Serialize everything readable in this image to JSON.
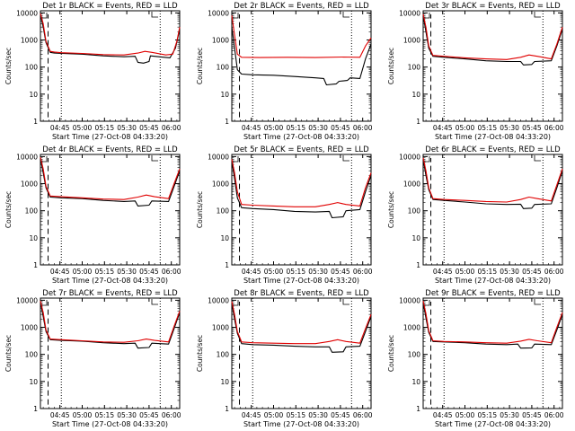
{
  "page": {
    "colors": {
      "background": "#ffffff",
      "axes": "#000000",
      "events": "#000000",
      "lld": "#e00000"
    }
  },
  "chart_data": [
    {
      "type": "line",
      "title": "Det 1r BLACK = Events, RED = LLD",
      "xlabel": "Start Time (27-Oct-08 04:33:20)",
      "ylabel": "Counts/sec",
      "yscale": "log",
      "ylim": [
        1,
        12000
      ],
      "xlim": [
        0,
        1
      ],
      "xtick_pos": [
        0.14,
        0.3,
        0.46,
        0.62,
        0.78,
        0.94
      ],
      "xticks": [
        "04:45",
        "05:00",
        "05:15",
        "05:30",
        "05:45",
        "06:00"
      ],
      "yticks": [
        1,
        10,
        100,
        1000,
        10000
      ],
      "yticklabels": [
        "1",
        "10",
        "100",
        "1000",
        "10000"
      ],
      "vlines_dashed": [
        0.055
      ],
      "vlines_dotted": [
        0.15,
        0.86
      ],
      "series": [
        {
          "name": "Events",
          "color": "#000000",
          "x": [
            0,
            0.02,
            0.04,
            0.07,
            0.1,
            0.15,
            0.3,
            0.45,
            0.6,
            0.68,
            0.7,
            0.74,
            0.78,
            0.79,
            0.85,
            0.93,
            0.97,
            1
          ],
          "y": [
            9000,
            3000,
            800,
            350,
            330,
            320,
            300,
            260,
            240,
            250,
            150,
            140,
            160,
            260,
            240,
            220,
            500,
            2500
          ]
        },
        {
          "name": "LLD",
          "color": "#e00000",
          "x": [
            0,
            0.02,
            0.04,
            0.07,
            0.1,
            0.15,
            0.3,
            0.45,
            0.6,
            0.7,
            0.75,
            0.8,
            0.9,
            0.95,
            0.98,
            1
          ],
          "y": [
            9500,
            4000,
            900,
            380,
            360,
            340,
            320,
            290,
            280,
            330,
            380,
            350,
            280,
            300,
            900,
            3000
          ]
        }
      ]
    },
    {
      "type": "line",
      "title": "Det 2r BLACK = Events, RED = LLD",
      "xlabel": "Start Time (27-Oct-08 04:33:20)",
      "ylabel": "Counts/sec",
      "yscale": "log",
      "ylim": [
        1,
        12000
      ],
      "xlim": [
        0,
        1
      ],
      "xtick_pos": [
        0.14,
        0.3,
        0.46,
        0.62,
        0.78,
        0.94
      ],
      "xticks": [
        "04:45",
        "05:00",
        "05:15",
        "05:30",
        "05:45",
        "06:00"
      ],
      "yticks": [
        1,
        10,
        100,
        1000,
        10000
      ],
      "yticklabels": [
        "1",
        "10",
        "100",
        "1000",
        "10000"
      ],
      "vlines_dashed": [
        0.055
      ],
      "vlines_dotted": [
        0.15,
        0.86
      ],
      "series": [
        {
          "name": "Events",
          "color": "#000000",
          "x": [
            0,
            0.02,
            0.04,
            0.07,
            0.15,
            0.3,
            0.45,
            0.6,
            0.66,
            0.68,
            0.75,
            0.77,
            0.83,
            0.85,
            0.92,
            0.96,
            1
          ],
          "y": [
            3000,
            500,
            80,
            55,
            52,
            50,
            45,
            40,
            38,
            22,
            24,
            30,
            32,
            40,
            38,
            200,
            700
          ]
        },
        {
          "name": "LLD",
          "color": "#e00000",
          "x": [
            0,
            0.02,
            0.04,
            0.07,
            0.2,
            0.4,
            0.6,
            0.8,
            0.92,
            0.96,
            1
          ],
          "y": [
            8000,
            1500,
            300,
            230,
            225,
            230,
            225,
            235,
            230,
            600,
            1200
          ]
        }
      ]
    },
    {
      "type": "line",
      "title": "Det 3r BLACK = Events, RED = LLD",
      "xlabel": "Start Time (27-Oct-08 04:33:20)",
      "ylabel": "Counts/sec",
      "yscale": "log",
      "ylim": [
        1,
        12000
      ],
      "xlim": [
        0,
        1
      ],
      "xtick_pos": [
        0.14,
        0.3,
        0.46,
        0.62,
        0.78,
        0.94
      ],
      "xticks": [
        "04:45",
        "05:00",
        "05:15",
        "05:30",
        "05:45",
        "06:00"
      ],
      "yticks": [
        1,
        10,
        100,
        1000,
        10000
      ],
      "yticklabels": [
        "1",
        "10",
        "100",
        "1000",
        "10000"
      ],
      "vlines_dashed": [
        0.055
      ],
      "vlines_dotted": [
        0.15,
        0.86
      ],
      "series": [
        {
          "name": "Events",
          "color": "#000000",
          "x": [
            0,
            0.02,
            0.04,
            0.07,
            0.15,
            0.3,
            0.45,
            0.6,
            0.7,
            0.72,
            0.78,
            0.8,
            0.92,
            0.96,
            1
          ],
          "y": [
            8000,
            2000,
            500,
            250,
            230,
            200,
            170,
            160,
            160,
            120,
            125,
            160,
            170,
            600,
            2500
          ]
        },
        {
          "name": "LLD",
          "color": "#e00000",
          "x": [
            0,
            0.02,
            0.04,
            0.07,
            0.15,
            0.3,
            0.45,
            0.6,
            0.7,
            0.76,
            0.82,
            0.92,
            0.96,
            1
          ],
          "y": [
            9000,
            3000,
            600,
            270,
            250,
            220,
            200,
            190,
            230,
            280,
            250,
            200,
            700,
            3000
          ]
        }
      ]
    },
    {
      "type": "line",
      "title": "Det 4r BLACK = Events, RED = LLD",
      "xlabel": "Start Time (27-Oct-08 04:33:20)",
      "ylabel": "Counts/sec",
      "yscale": "log",
      "ylim": [
        1,
        12000
      ],
      "xlim": [
        0,
        1
      ],
      "xtick_pos": [
        0.14,
        0.3,
        0.46,
        0.62,
        0.78,
        0.94
      ],
      "xticks": [
        "04:45",
        "05:00",
        "05:15",
        "05:30",
        "05:45",
        "06:00"
      ],
      "yticks": [
        1,
        10,
        100,
        1000,
        10000
      ],
      "yticklabels": [
        "1",
        "10",
        "100",
        "1000",
        "10000"
      ],
      "vlines_dashed": [
        0.055
      ],
      "vlines_dotted": [
        0.15,
        0.86
      ],
      "series": [
        {
          "name": "Events",
          "color": "#000000",
          "x": [
            0,
            0.02,
            0.04,
            0.07,
            0.15,
            0.3,
            0.45,
            0.6,
            0.68,
            0.7,
            0.78,
            0.8,
            0.92,
            0.96,
            1
          ],
          "y": [
            9000,
            2500,
            700,
            320,
            300,
            280,
            240,
            220,
            230,
            150,
            160,
            230,
            220,
            800,
            3000
          ]
        },
        {
          "name": "LLD",
          "color": "#e00000",
          "x": [
            0,
            0.02,
            0.04,
            0.07,
            0.15,
            0.3,
            0.45,
            0.6,
            0.7,
            0.76,
            0.82,
            0.92,
            0.96,
            1
          ],
          "y": [
            9500,
            3500,
            800,
            350,
            330,
            300,
            270,
            260,
            320,
            380,
            330,
            280,
            1000,
            3500
          ]
        }
      ]
    },
    {
      "type": "line",
      "title": "Det 5r BLACK = Events, RED = LLD",
      "xlabel": "Start Time (27-Oct-08 04:33:20)",
      "ylabel": "Counts/sec",
      "yscale": "log",
      "ylim": [
        1,
        12000
      ],
      "xlim": [
        0,
        1
      ],
      "xtick_pos": [
        0.14,
        0.3,
        0.46,
        0.62,
        0.78,
        0.94
      ],
      "xticks": [
        "04:45",
        "05:00",
        "05:15",
        "05:30",
        "05:45",
        "06:00"
      ],
      "yticks": [
        1,
        10,
        100,
        1000,
        10000
      ],
      "yticklabels": [
        "1",
        "10",
        "100",
        "1000",
        "10000"
      ],
      "vlines_dashed": [
        0.055
      ],
      "vlines_dotted": [
        0.15,
        0.86
      ],
      "series": [
        {
          "name": "Events",
          "color": "#000000",
          "x": [
            0,
            0.02,
            0.04,
            0.07,
            0.15,
            0.3,
            0.45,
            0.6,
            0.7,
            0.72,
            0.8,
            0.82,
            0.92,
            0.96,
            1
          ],
          "y": [
            7000,
            1500,
            300,
            130,
            120,
            110,
            95,
            90,
            95,
            55,
            60,
            100,
            110,
            500,
            2000
          ]
        },
        {
          "name": "LLD",
          "color": "#e00000",
          "x": [
            0,
            0.02,
            0.04,
            0.07,
            0.15,
            0.3,
            0.45,
            0.6,
            0.7,
            0.76,
            0.82,
            0.92,
            0.96,
            1
          ],
          "y": [
            8000,
            2500,
            500,
            170,
            160,
            150,
            140,
            140,
            170,
            200,
            170,
            150,
            700,
            2500
          ]
        }
      ]
    },
    {
      "type": "line",
      "title": "Det 6r BLACK = Events, RED = LLD",
      "xlabel": "Start Time (27-Oct-08 04:33:20)",
      "ylabel": "Counts/sec",
      "yscale": "log",
      "ylim": [
        1,
        12000
      ],
      "xlim": [
        0,
        1
      ],
      "xtick_pos": [
        0.14,
        0.3,
        0.46,
        0.62,
        0.78,
        0.94
      ],
      "xticks": [
        "04:45",
        "05:00",
        "05:15",
        "05:30",
        "05:45",
        "06:00"
      ],
      "yticks": [
        1,
        10,
        100,
        1000,
        10000
      ],
      "yticklabels": [
        "1",
        "10",
        "100",
        "1000",
        "10000"
      ],
      "vlines_dashed": [
        0.055
      ],
      "vlines_dotted": [
        0.15,
        0.86
      ],
      "series": [
        {
          "name": "Events",
          "color": "#000000",
          "x": [
            0,
            0.02,
            0.04,
            0.07,
            0.15,
            0.3,
            0.45,
            0.6,
            0.7,
            0.72,
            0.78,
            0.8,
            0.92,
            0.96,
            1
          ],
          "y": [
            8000,
            2000,
            600,
            260,
            240,
            210,
            180,
            170,
            175,
            120,
            125,
            170,
            180,
            700,
            3000
          ]
        },
        {
          "name": "LLD",
          "color": "#e00000",
          "x": [
            0,
            0.02,
            0.04,
            0.07,
            0.15,
            0.3,
            0.45,
            0.6,
            0.7,
            0.76,
            0.82,
            0.92,
            0.96,
            1
          ],
          "y": [
            9000,
            3000,
            700,
            280,
            260,
            240,
            220,
            210,
            260,
            320,
            280,
            230,
            900,
            3500
          ]
        }
      ]
    },
    {
      "type": "line",
      "title": "Det 7r BLACK = Events, RED = LLD",
      "xlabel": "Start Time (27-Oct-08 04:33:20)",
      "ylabel": "Counts/sec",
      "yscale": "log",
      "ylim": [
        1,
        12000
      ],
      "xlim": [
        0,
        1
      ],
      "xtick_pos": [
        0.14,
        0.3,
        0.46,
        0.62,
        0.78,
        0.94
      ],
      "xticks": [
        "04:45",
        "05:00",
        "05:15",
        "05:30",
        "05:45",
        "06:00"
      ],
      "yticks": [
        1,
        10,
        100,
        1000,
        10000
      ],
      "yticklabels": [
        "1",
        "10",
        "100",
        "1000",
        "10000"
      ],
      "vlines_dashed": [
        0.055
      ],
      "vlines_dotted": [
        0.15,
        0.86
      ],
      "series": [
        {
          "name": "Events",
          "color": "#000000",
          "x": [
            0,
            0.02,
            0.04,
            0.07,
            0.15,
            0.3,
            0.45,
            0.6,
            0.68,
            0.7,
            0.78,
            0.8,
            0.92,
            0.96,
            1
          ],
          "y": [
            9000,
            2500,
            700,
            350,
            330,
            310,
            270,
            250,
            260,
            170,
            180,
            260,
            240,
            900,
            3500
          ]
        },
        {
          "name": "LLD",
          "color": "#e00000",
          "x": [
            0,
            0.02,
            0.04,
            0.07,
            0.15,
            0.3,
            0.45,
            0.6,
            0.7,
            0.76,
            0.82,
            0.92,
            0.96,
            1
          ],
          "y": [
            9500,
            3500,
            800,
            370,
            350,
            320,
            290,
            280,
            320,
            370,
            330,
            290,
            1100,
            4000
          ]
        }
      ]
    },
    {
      "type": "line",
      "title": "Det 8r BLACK = Events, RED = LLD",
      "xlabel": "Start Time (27-Oct-08 04:33:20)",
      "ylabel": "Counts/sec",
      "yscale": "log",
      "ylim": [
        1,
        12000
      ],
      "xlim": [
        0,
        1
      ],
      "xtick_pos": [
        0.14,
        0.3,
        0.46,
        0.62,
        0.78,
        0.94
      ],
      "xticks": [
        "04:45",
        "05:00",
        "05:15",
        "05:30",
        "05:45",
        "06:00"
      ],
      "yticks": [
        1,
        10,
        100,
        1000,
        10000
      ],
      "yticklabels": [
        "1",
        "10",
        "100",
        "1000",
        "10000"
      ],
      "vlines_dashed": [
        0.055
      ],
      "vlines_dotted": [
        0.15,
        0.86
      ],
      "series": [
        {
          "name": "Events",
          "color": "#000000",
          "x": [
            0,
            0.02,
            0.04,
            0.07,
            0.15,
            0.3,
            0.45,
            0.6,
            0.7,
            0.72,
            0.8,
            0.82,
            0.92,
            0.96,
            1
          ],
          "y": [
            8000,
            2000,
            600,
            250,
            230,
            220,
            200,
            190,
            190,
            120,
            125,
            190,
            200,
            700,
            2500
          ]
        },
        {
          "name": "LLD",
          "color": "#e00000",
          "x": [
            0,
            0.02,
            0.04,
            0.07,
            0.15,
            0.3,
            0.45,
            0.6,
            0.7,
            0.76,
            0.82,
            0.92,
            0.96,
            1
          ],
          "y": [
            9000,
            3000,
            700,
            290,
            270,
            260,
            250,
            250,
            300,
            350,
            300,
            260,
            900,
            3000
          ]
        }
      ]
    },
    {
      "type": "line",
      "title": "Det 9r BLACK = Events, RED = LLD",
      "xlabel": "Start Time (27-Oct-08 04:33:20)",
      "ylabel": "Counts/sec",
      "yscale": "log",
      "ylim": [
        1,
        12000
      ],
      "xlim": [
        0,
        1
      ],
      "xtick_pos": [
        0.14,
        0.3,
        0.46,
        0.62,
        0.78,
        0.94
      ],
      "xticks": [
        "04:45",
        "05:00",
        "05:15",
        "05:30",
        "05:45",
        "06:00"
      ],
      "yticks": [
        1,
        10,
        100,
        1000,
        10000
      ],
      "yticklabels": [
        "1",
        "10",
        "100",
        "1000",
        "10000"
      ],
      "vlines_dashed": [
        0.055
      ],
      "vlines_dotted": [
        0.15,
        0.86
      ],
      "series": [
        {
          "name": "Events",
          "color": "#000000",
          "x": [
            0,
            0.02,
            0.04,
            0.07,
            0.15,
            0.3,
            0.45,
            0.6,
            0.68,
            0.7,
            0.78,
            0.8,
            0.92,
            0.96,
            1
          ],
          "y": [
            8500,
            2200,
            650,
            300,
            290,
            270,
            240,
            230,
            240,
            170,
            175,
            240,
            230,
            800,
            3000
          ]
        },
        {
          "name": "LLD",
          "color": "#e00000",
          "x": [
            0,
            0.02,
            0.04,
            0.07,
            0.15,
            0.3,
            0.45,
            0.6,
            0.7,
            0.76,
            0.82,
            0.92,
            0.96,
            1
          ],
          "y": [
            9500,
            3200,
            750,
            320,
            300,
            290,
            270,
            260,
            310,
            360,
            320,
            270,
            1000,
            3500
          ]
        }
      ]
    }
  ]
}
